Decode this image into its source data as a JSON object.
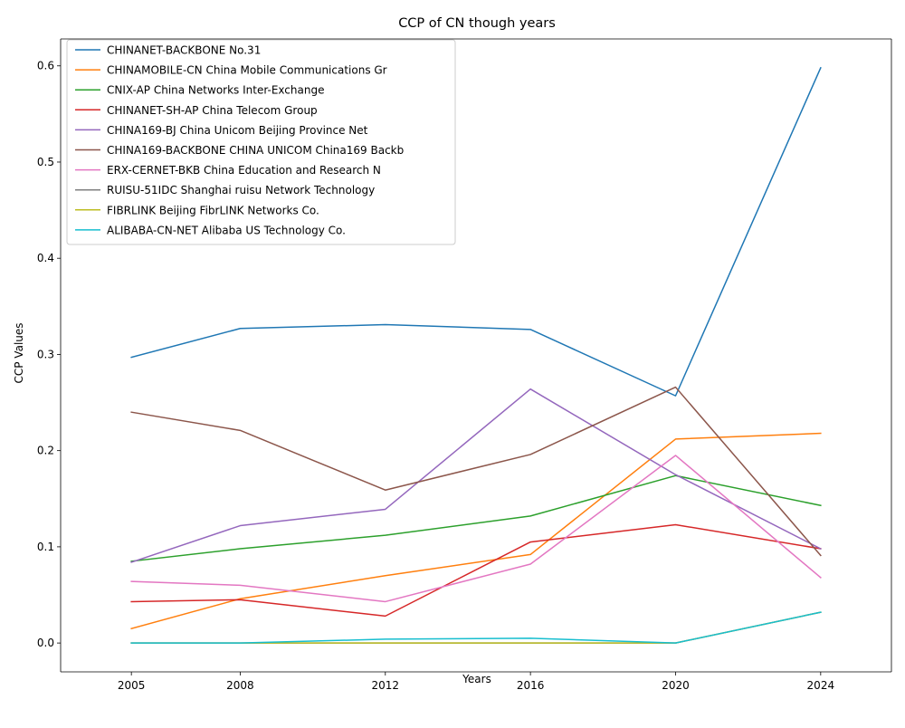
{
  "chart_data": {
    "type": "line",
    "title": "CCP of CN though years",
    "xlabel": "Years",
    "ylabel": "CCP Values",
    "x": [
      2005,
      2008,
      2012,
      2016,
      2020,
      2024
    ],
    "x_ticks": [
      "2005",
      "2008",
      "2012",
      "2016",
      "2020",
      "2024"
    ],
    "y_ticks": [
      "0.0",
      "0.1",
      "0.2",
      "0.3",
      "0.4",
      "0.5",
      "0.6"
    ],
    "xlim": [
      2003.05,
      2025.95
    ],
    "ylim": [
      -0.03,
      0.628
    ],
    "grid": false,
    "legend_position": "upper-left",
    "series": [
      {
        "name": "CHINANET-BACKBONE No.31",
        "color": "#1f77b4",
        "values": [
          0.297,
          0.327,
          0.331,
          0.326,
          0.257,
          0.598
        ]
      },
      {
        "name": "CHINAMOBILE-CN China Mobile Communications Gr",
        "color": "#ff7f0e",
        "values": [
          0.015,
          0.046,
          0.07,
          0.092,
          0.212,
          0.218
        ]
      },
      {
        "name": "CNIX-AP China Networks Inter-Exchange",
        "color": "#2ca02c",
        "values": [
          0.085,
          0.098,
          0.112,
          0.132,
          0.174,
          0.143
        ]
      },
      {
        "name": "CHINANET-SH-AP China Telecom Group",
        "color": "#d62728",
        "values": [
          0.043,
          0.045,
          0.028,
          0.105,
          0.123,
          0.098
        ]
      },
      {
        "name": "CHINA169-BJ China Unicom Beijing Province Net",
        "color": "#9467bd",
        "values": [
          0.084,
          0.122,
          0.139,
          0.264,
          0.175,
          0.098
        ]
      },
      {
        "name": "CHINA169-BACKBONE CHINA UNICOM China169 Backb",
        "color": "#8c564b",
        "values": [
          0.24,
          0.221,
          0.159,
          0.196,
          0.266,
          0.091
        ]
      },
      {
        "name": "ERX-CERNET-BKB China Education and Research N",
        "color": "#e377c2",
        "values": [
          0.064,
          0.06,
          0.043,
          0.082,
          0.195,
          0.068
        ]
      },
      {
        "name": "RUISU-51IDC Shanghai ruisu Network Technology",
        "color": "#7f7f7f",
        "values": [
          0.0,
          0.0,
          0.0,
          0.0,
          0.0,
          0.032
        ]
      },
      {
        "name": "FIBRLINK Beijing FibrLINK Networks Co.",
        "color": "#bcbd22",
        "values": [
          0.0,
          0.0,
          0.0,
          0.0,
          0.0,
          0.032
        ]
      },
      {
        "name": "ALIBABA-CN-NET Alibaba US Technology Co.",
        "color": "#17becf",
        "values": [
          0.0,
          0.0,
          0.004,
          0.005,
          0.0,
          0.032
        ]
      }
    ]
  }
}
